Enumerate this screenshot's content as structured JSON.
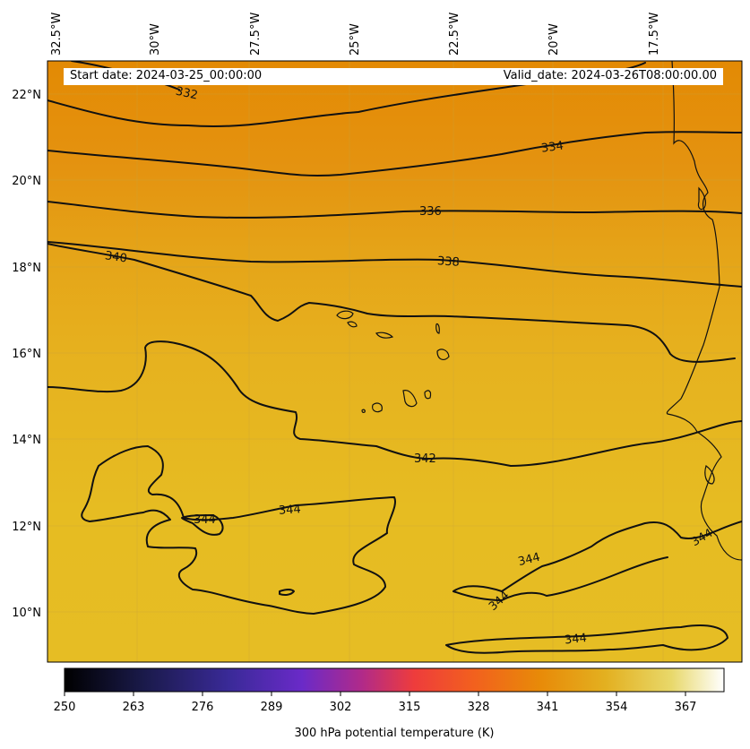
{
  "header": {
    "start_date": "Start date: 2024-03-25_00:00:00",
    "valid_date": "Valid_date: 2024-03-26T08:00:00.00"
  },
  "map": {
    "field": "300 hPa potential temperature",
    "lon_range": [
      -32.5,
      -15.0
    ],
    "lat_range": [
      8.9,
      22.8
    ],
    "lon_ticks": [
      "32.5°W",
      "30°W",
      "27.5°W",
      "25°W",
      "22.5°W",
      "20°W",
      "17.5°W"
    ],
    "lat_ticks": [
      "22°N",
      "20°N",
      "18°N",
      "16°N",
      "14°N",
      "12°N",
      "10°N"
    ],
    "contour_labels": [
      "332",
      "334",
      "336",
      "338",
      "340",
      "342",
      "344",
      "344",
      "344",
      "344",
      "344",
      "344"
    ],
    "colors": {
      "warm_top": "#e38c05",
      "mid": "#e5a918",
      "south": "#e6be22"
    }
  },
  "colorbar": {
    "label": "300 hPa potential temperature (K)",
    "ticks": [
      "250",
      "263",
      "276",
      "289",
      "302",
      "315",
      "328",
      "341",
      "354",
      "367"
    ],
    "colormap": "CMRmap"
  }
}
